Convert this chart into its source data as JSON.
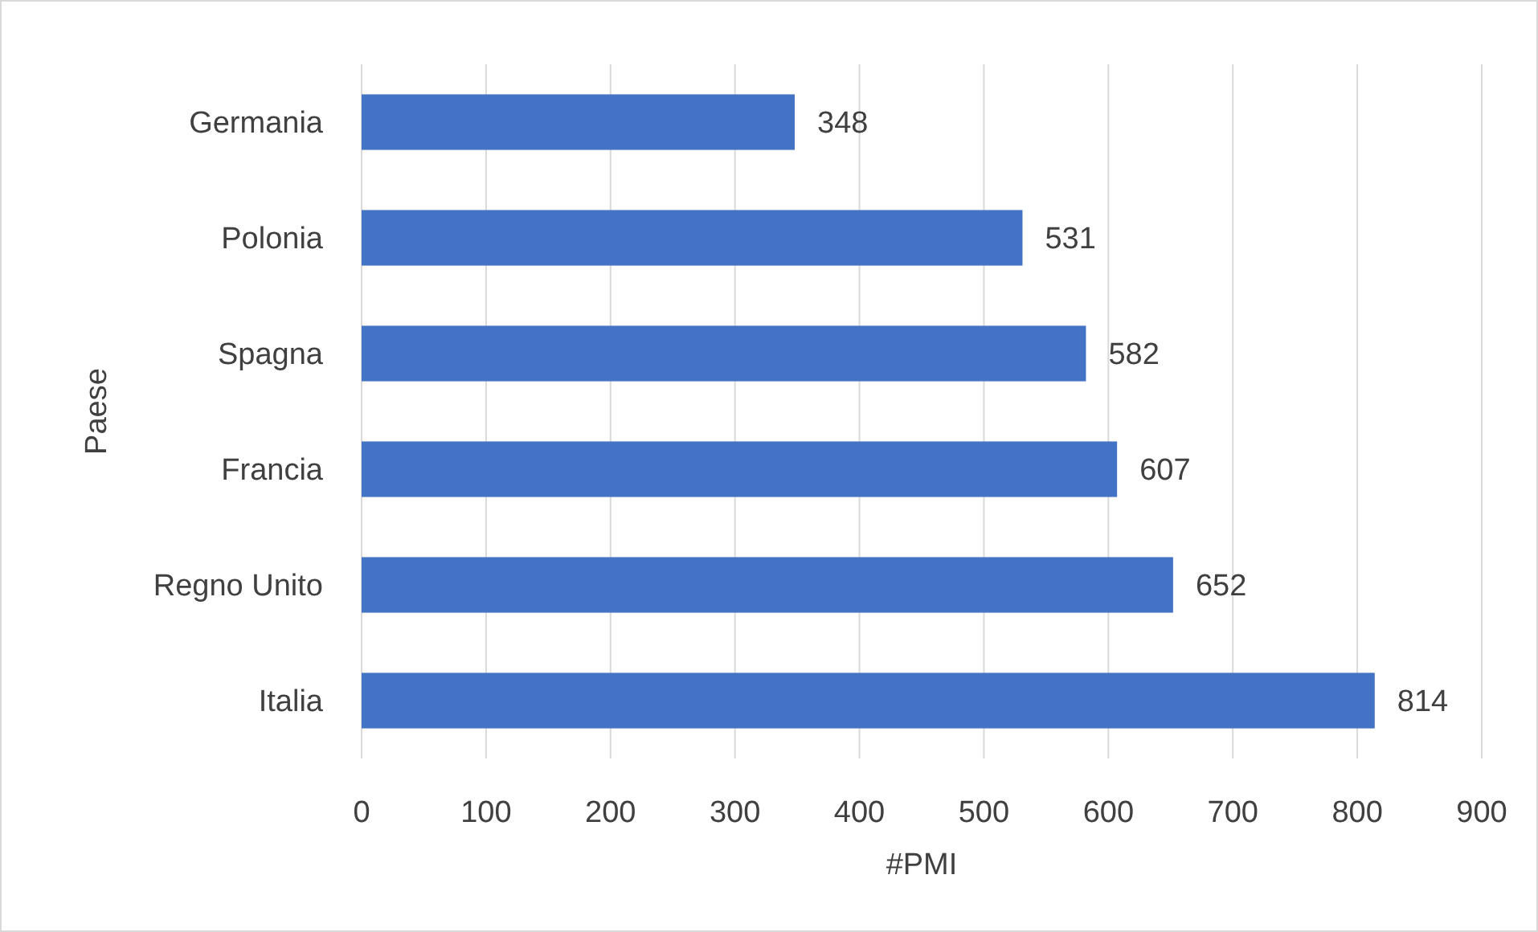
{
  "chart_data": {
    "type": "bar",
    "orientation": "horizontal",
    "xlabel": "#PMI",
    "ylabel": "Paese",
    "categories": [
      "Germania",
      "Polonia",
      "Spagna",
      "Francia",
      "Regno Unito",
      "Italia"
    ],
    "values": [
      348,
      531,
      582,
      607,
      652,
      814
    ],
    "color": "#4472c4",
    "xlim": [
      0,
      900
    ],
    "xticks": [
      0,
      100,
      200,
      300,
      400,
      500,
      600,
      700,
      800,
      900
    ],
    "grid": "x",
    "data_labels": true
  }
}
